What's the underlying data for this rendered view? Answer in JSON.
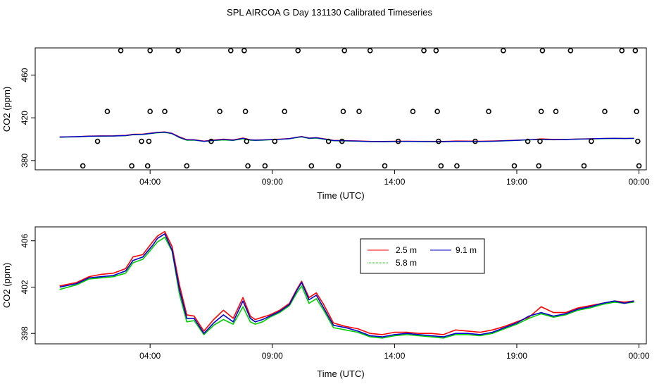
{
  "title": "SPL AIRCOA G  Day 131130  Calibrated Timeseries",
  "charts": [
    {
      "id": "top",
      "chart_data": {
        "type": "scatter+line",
        "xlabel": "Time (UTC)",
        "ylabel": "CO2 (ppm)",
        "x_ticks": [
          "04:00",
          "09:00",
          "14:00",
          "19:00",
          "00:00"
        ],
        "x_tick_hours": [
          4,
          9,
          14,
          19,
          24
        ],
        "xlim": [
          -0.7,
          24.3
        ],
        "ylim": [
          371.3,
          485.5
        ],
        "y_ticks": [
          380,
          420,
          460
        ],
        "points": [
          [
            1.25,
            375
          ],
          [
            1.85,
            398
          ],
          [
            2.25,
            426
          ],
          [
            2.8,
            483
          ],
          [
            3.25,
            375
          ],
          [
            3.65,
            398
          ],
          [
            3.9,
            375
          ],
          [
            3.95,
            398
          ],
          [
            4.0,
            426
          ],
          [
            4.0,
            483
          ],
          [
            4.6,
            426
          ],
          [
            5.15,
            483
          ],
          [
            5.5,
            375
          ],
          [
            6.5,
            398
          ],
          [
            6.85,
            426
          ],
          [
            7.3,
            483
          ],
          [
            7.85,
            483
          ],
          [
            7.9,
            426
          ],
          [
            7.95,
            398
          ],
          [
            8.0,
            375
          ],
          [
            8.7,
            375
          ],
          [
            9.1,
            398
          ],
          [
            9.5,
            426
          ],
          [
            10.05,
            483
          ],
          [
            10.6,
            375
          ],
          [
            11.3,
            398
          ],
          [
            11.7,
            375
          ],
          [
            11.85,
            398
          ],
          [
            11.9,
            426
          ],
          [
            11.95,
            483
          ],
          [
            12.55,
            426
          ],
          [
            13.0,
            483
          ],
          [
            13.6,
            375
          ],
          [
            14.15,
            398
          ],
          [
            14.75,
            426
          ],
          [
            15.2,
            483
          ],
          [
            15.7,
            483
          ],
          [
            15.75,
            426
          ],
          [
            15.8,
            398
          ],
          [
            15.9,
            375
          ],
          [
            16.55,
            375
          ],
          [
            17.3,
            398
          ],
          [
            17.85,
            426
          ],
          [
            18.45,
            483
          ],
          [
            18.9,
            375
          ],
          [
            19.45,
            398
          ],
          [
            19.9,
            375
          ],
          [
            19.95,
            398
          ],
          [
            20.0,
            426
          ],
          [
            20.05,
            483
          ],
          [
            20.6,
            426
          ],
          [
            21.2,
            483
          ],
          [
            21.75,
            375
          ],
          [
            22.05,
            398
          ],
          [
            22.6,
            426
          ],
          [
            23.3,
            483
          ],
          [
            23.85,
            483
          ],
          [
            23.9,
            426
          ],
          [
            23.95,
            398
          ],
          [
            24.0,
            375
          ]
        ]
      }
    },
    {
      "id": "bottom",
      "chart_data": {
        "type": "line",
        "xlabel": "Time (UTC)",
        "ylabel": "CO2 (ppm)",
        "x_ticks": [
          "04:00",
          "09:00",
          "14:00",
          "19:00",
          "00:00"
        ],
        "x_tick_hours": [
          4,
          9,
          14,
          19,
          24
        ],
        "xlim": [
          -0.7,
          24.3
        ],
        "ylim": [
          397.1,
          407.2
        ],
        "y_ticks": [
          398,
          402,
          406
        ],
        "legend": {
          "position": "top-center",
          "entries": [
            "2.5 m",
            "5.8 m",
            "9.1 m"
          ]
        },
        "series": [
          {
            "name": "2.5 m",
            "color": "#ff0000",
            "x": [
              0.3,
              1.0,
              1.5,
              2.0,
              2.5,
              3.0,
              3.3,
              3.7,
              4.1,
              4.3,
              4.6,
              4.9,
              5.2,
              5.5,
              5.8,
              6.2,
              6.6,
              7.0,
              7.4,
              7.8,
              8.1,
              8.3,
              8.6,
              8.9,
              9.3,
              9.7,
              10.0,
              10.2,
              10.5,
              10.8,
              11.1,
              11.5,
              12.0,
              12.5,
              13.0,
              13.5,
              14.0,
              14.5,
              15.0,
              15.5,
              16.0,
              16.5,
              17.0,
              17.5,
              18.0,
              18.5,
              19.0,
              19.5,
              20.0,
              20.5,
              21.0,
              21.5,
              22.0,
              22.5,
              23.0,
              23.4,
              23.8
            ],
            "values": [
              402.1,
              402.4,
              402.9,
              403.1,
              403.2,
              403.6,
              404.6,
              404.8,
              405.9,
              406.4,
              406.8,
              405.5,
              402.2,
              399.6,
              399.5,
              398.2,
              399.2,
              400.0,
              399.3,
              401.1,
              399.5,
              399.2,
              399.4,
              399.6,
              400.0,
              400.6,
              401.8,
              402.5,
              401.1,
              401.5,
              400.5,
              398.9,
              398.6,
              398.4,
              398.0,
              397.9,
              398.1,
              398.1,
              398.0,
              398.0,
              397.9,
              398.3,
              398.2,
              398.1,
              398.3,
              398.6,
              399.0,
              399.4,
              400.3,
              399.8,
              399.8,
              400.2,
              400.4,
              400.6,
              400.8,
              400.7,
              400.8
            ]
          },
          {
            "name": "5.8 m",
            "color": "#00cc00",
            "x": [
              0.3,
              1.0,
              1.5,
              2.0,
              2.5,
              3.0,
              3.3,
              3.7,
              4.1,
              4.3,
              4.6,
              4.9,
              5.2,
              5.5,
              5.8,
              6.2,
              6.6,
              7.0,
              7.4,
              7.8,
              8.1,
              8.3,
              8.6,
              8.9,
              9.3,
              9.7,
              10.0,
              10.2,
              10.5,
              10.8,
              11.1,
              11.5,
              12.0,
              12.5,
              13.0,
              13.5,
              14.0,
              14.5,
              15.0,
              15.5,
              16.0,
              16.5,
              17.0,
              17.5,
              18.0,
              18.5,
              19.0,
              19.5,
              20.0,
              20.5,
              21.0,
              21.5,
              22.0,
              22.5,
              23.0,
              23.4,
              23.8
            ],
            "values": [
              401.8,
              402.2,
              402.7,
              402.8,
              402.9,
              403.2,
              404.1,
              404.4,
              405.4,
              405.9,
              406.3,
              405.1,
              401.4,
              399.0,
              399.1,
              397.9,
              398.7,
              399.2,
              398.8,
              400.3,
              399.0,
              398.8,
              399.0,
              399.4,
              399.8,
              400.4,
              401.5,
              402.1,
              400.6,
              401.0,
              400.0,
              398.5,
              398.3,
              398.1,
              397.7,
              397.6,
              397.8,
              397.9,
              397.8,
              397.7,
              397.6,
              397.9,
              397.9,
              397.8,
              398.0,
              398.4,
              398.8,
              399.3,
              399.7,
              399.4,
              399.6,
              400.0,
              400.2,
              400.5,
              400.7,
              400.6,
              400.7
            ]
          },
          {
            "name": "9.1 m",
            "color": "#0000cc",
            "x": [
              0.3,
              1.0,
              1.5,
              2.0,
              2.5,
              3.0,
              3.3,
              3.7,
              4.1,
              4.3,
              4.6,
              4.9,
              5.2,
              5.5,
              5.8,
              6.2,
              6.6,
              7.0,
              7.4,
              7.8,
              8.1,
              8.3,
              8.6,
              8.9,
              9.3,
              9.7,
              10.0,
              10.2,
              10.5,
              10.8,
              11.1,
              11.5,
              12.0,
              12.5,
              13.0,
              13.5,
              14.0,
              14.5,
              15.0,
              15.5,
              16.0,
              16.5,
              17.0,
              17.5,
              18.0,
              18.5,
              19.0,
              19.5,
              20.0,
              20.5,
              21.0,
              21.5,
              22.0,
              22.5,
              23.0,
              23.4,
              23.8
            ],
            "values": [
              402.0,
              402.3,
              402.8,
              402.9,
              403.0,
              403.4,
              404.3,
              404.6,
              405.6,
              406.2,
              406.6,
              405.2,
              401.8,
              399.3,
              399.3,
              398.0,
              398.9,
              399.6,
              399.0,
              400.8,
              399.3,
              399.0,
              399.2,
              399.5,
              399.9,
              400.5,
              401.7,
              402.4,
              400.9,
              401.3,
              400.2,
              398.7,
              398.5,
              398.2,
              397.8,
              397.7,
              397.9,
              398.0,
              397.9,
              397.8,
              397.7,
              398.0,
              398.0,
              397.9,
              398.1,
              398.5,
              398.9,
              399.5,
              399.8,
              399.5,
              399.7,
              400.1,
              400.3,
              400.6,
              400.8,
              400.6,
              400.8
            ]
          }
        ]
      }
    }
  ]
}
